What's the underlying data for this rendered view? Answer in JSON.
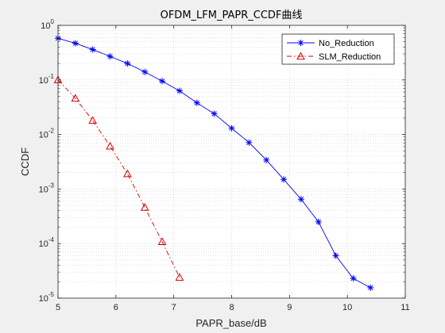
{
  "chart_data": {
    "type": "line",
    "title": "OFDM_LFM_PAPR_CCDF曲线",
    "xlabel": "PAPR_base/dB",
    "ylabel": "CCDF",
    "xlim": [
      5,
      11
    ],
    "ylim": [
      1e-05,
      1
    ],
    "yscale": "log",
    "x_ticks": [
      "5",
      "6",
      "7",
      "8",
      "9",
      "10",
      "11"
    ],
    "y_ticks": [
      {
        "base": "10",
        "exp": "-5",
        "value": 1e-05
      },
      {
        "base": "10",
        "exp": "-4",
        "value": 0.0001
      },
      {
        "base": "10",
        "exp": "-3",
        "value": 0.001
      },
      {
        "base": "10",
        "exp": "-2",
        "value": 0.01
      },
      {
        "base": "10",
        "exp": "-1",
        "value": 0.1
      },
      {
        "base": "10",
        "exp": "0",
        "value": 1
      }
    ],
    "grid": true,
    "minor_grid": true,
    "legend_position": "top-right",
    "series": [
      {
        "name": "No_Reduction",
        "color": "#0000ff",
        "line_style": "solid",
        "marker": "asterisk",
        "x": [
          5.0,
          5.3,
          5.6,
          5.9,
          6.2,
          6.5,
          6.8,
          7.1,
          7.4,
          7.7,
          8.0,
          8.3,
          8.6,
          8.9,
          9.2,
          9.5,
          9.8,
          10.1,
          10.4
        ],
        "y": [
          0.58,
          0.47,
          0.36,
          0.27,
          0.2,
          0.14,
          0.095,
          0.063,
          0.038,
          0.024,
          0.013,
          0.0071,
          0.0034,
          0.0015,
          0.00065,
          0.00025,
          6e-05,
          2.3e-05,
          1.55e-05
        ]
      },
      {
        "name": "SLM_Reduction",
        "color": "#d40000",
        "line_style": "dashdot",
        "marker": "triangle",
        "x": [
          5.0,
          5.3,
          5.6,
          5.9,
          6.2,
          6.5,
          6.8,
          7.1
        ],
        "y": [
          0.1,
          0.046,
          0.018,
          0.0061,
          0.0019,
          0.00046,
          0.000108,
          2.4e-05
        ]
      }
    ]
  }
}
